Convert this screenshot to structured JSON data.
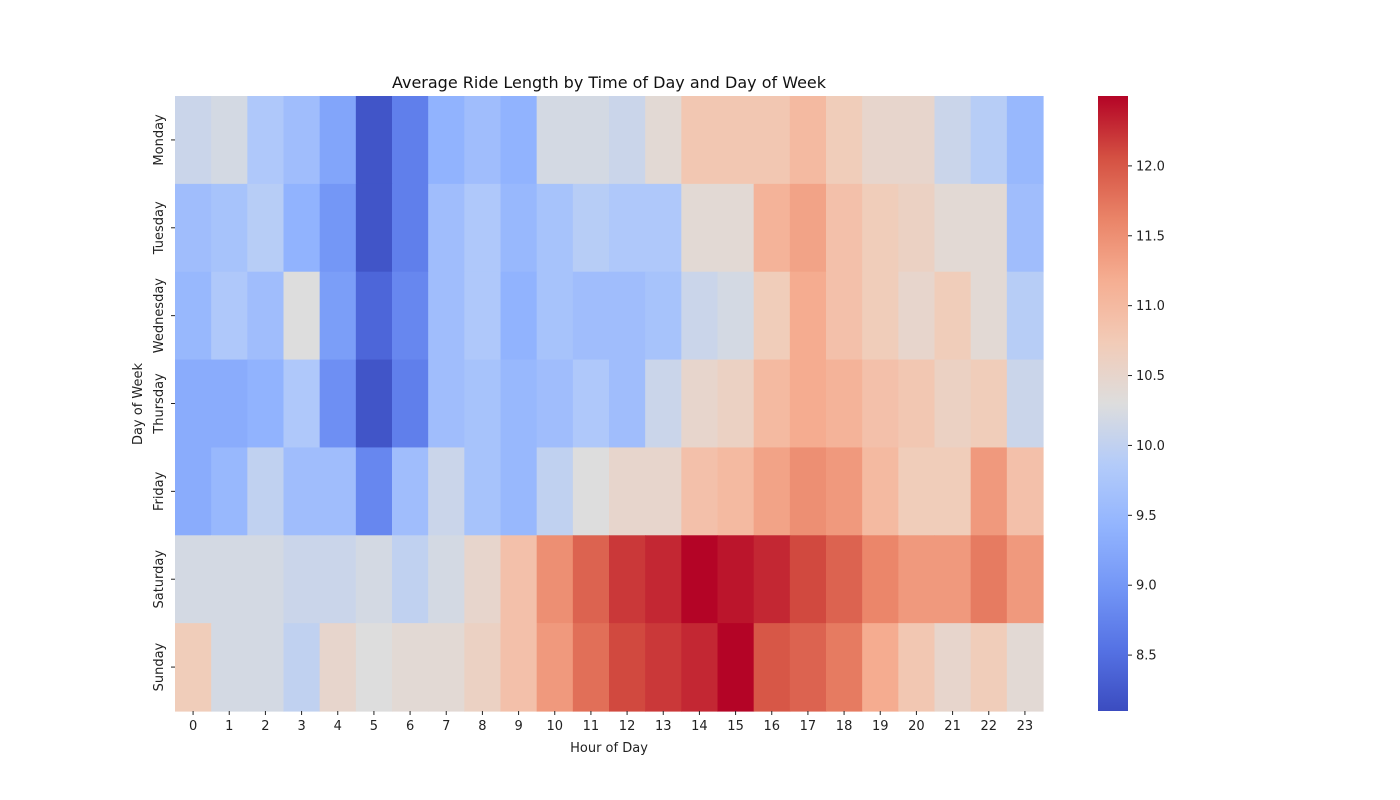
{
  "chart_data": {
    "type": "heatmap",
    "title": "Average Ride Length by Time of Day and Day of Week",
    "xlabel": "Hour of Day",
    "ylabel": "Day of Week",
    "x_categories": [
      "0",
      "1",
      "2",
      "3",
      "4",
      "5",
      "6",
      "7",
      "8",
      "9",
      "10",
      "11",
      "12",
      "13",
      "14",
      "15",
      "16",
      "17",
      "18",
      "19",
      "20",
      "21",
      "22",
      "23"
    ],
    "y_categories": [
      "Monday",
      "Tuesday",
      "Wednesday",
      "Thursday",
      "Friday",
      "Saturday",
      "Sunday"
    ],
    "values": [
      [
        10.1,
        10.2,
        9.8,
        9.6,
        9.2,
        8.2,
        8.7,
        9.4,
        9.6,
        9.4,
        10.2,
        10.2,
        10.1,
        10.4,
        10.8,
        10.8,
        10.8,
        11.0,
        10.7,
        10.5,
        10.5,
        10.1,
        9.9,
        9.5
      ],
      [
        9.6,
        9.7,
        9.9,
        9.4,
        9.0,
        8.2,
        8.7,
        9.6,
        9.8,
        9.5,
        9.7,
        9.9,
        9.8,
        9.8,
        10.4,
        10.4,
        11.1,
        11.3,
        10.9,
        10.7,
        10.6,
        10.4,
        10.4,
        9.6
      ],
      [
        9.5,
        9.8,
        9.6,
        10.3,
        9.1,
        8.4,
        8.8,
        9.6,
        9.8,
        9.4,
        9.7,
        9.6,
        9.6,
        9.7,
        10.1,
        10.2,
        10.7,
        11.2,
        10.9,
        10.7,
        10.5,
        10.7,
        10.4,
        9.9
      ],
      [
        9.3,
        9.3,
        9.4,
        9.8,
        8.9,
        8.2,
        8.7,
        9.6,
        9.7,
        9.5,
        9.6,
        9.8,
        9.6,
        10.1,
        10.5,
        10.6,
        11.0,
        11.2,
        11.1,
        10.9,
        10.8,
        10.6,
        10.7,
        10.1
      ],
      [
        9.3,
        9.5,
        10.0,
        9.6,
        9.6,
        8.8,
        9.6,
        10.1,
        9.7,
        9.5,
        10.0,
        10.3,
        10.5,
        10.5,
        10.9,
        11.0,
        11.3,
        11.5,
        11.4,
        11.0,
        10.7,
        10.7,
        11.4,
        10.9
      ],
      [
        10.2,
        10.2,
        10.2,
        10.1,
        10.1,
        10.2,
        10.0,
        10.2,
        10.5,
        10.9,
        11.5,
        11.9,
        12.2,
        12.3,
        12.5,
        12.4,
        12.3,
        12.1,
        11.9,
        11.6,
        11.4,
        11.4,
        11.7,
        11.4
      ],
      [
        10.7,
        10.2,
        10.2,
        10.0,
        10.5,
        10.3,
        10.4,
        10.4,
        10.6,
        10.9,
        11.4,
        11.8,
        12.1,
        12.2,
        12.3,
        12.5,
        12.0,
        11.9,
        11.7,
        11.2,
        10.8,
        10.5,
        10.7,
        10.4
      ]
    ],
    "vmin": 8.1,
    "vmax": 12.5,
    "colormap": "coolwarm",
    "colorbar_ticks": [
      "8.5",
      "9.0",
      "9.5",
      "10.0",
      "10.5",
      "11.0",
      "11.5",
      "12.0"
    ],
    "colorbar_tick_values": [
      8.5,
      9.0,
      9.5,
      10.0,
      10.5,
      11.0,
      11.5,
      12.0
    ],
    "grid": false
  }
}
